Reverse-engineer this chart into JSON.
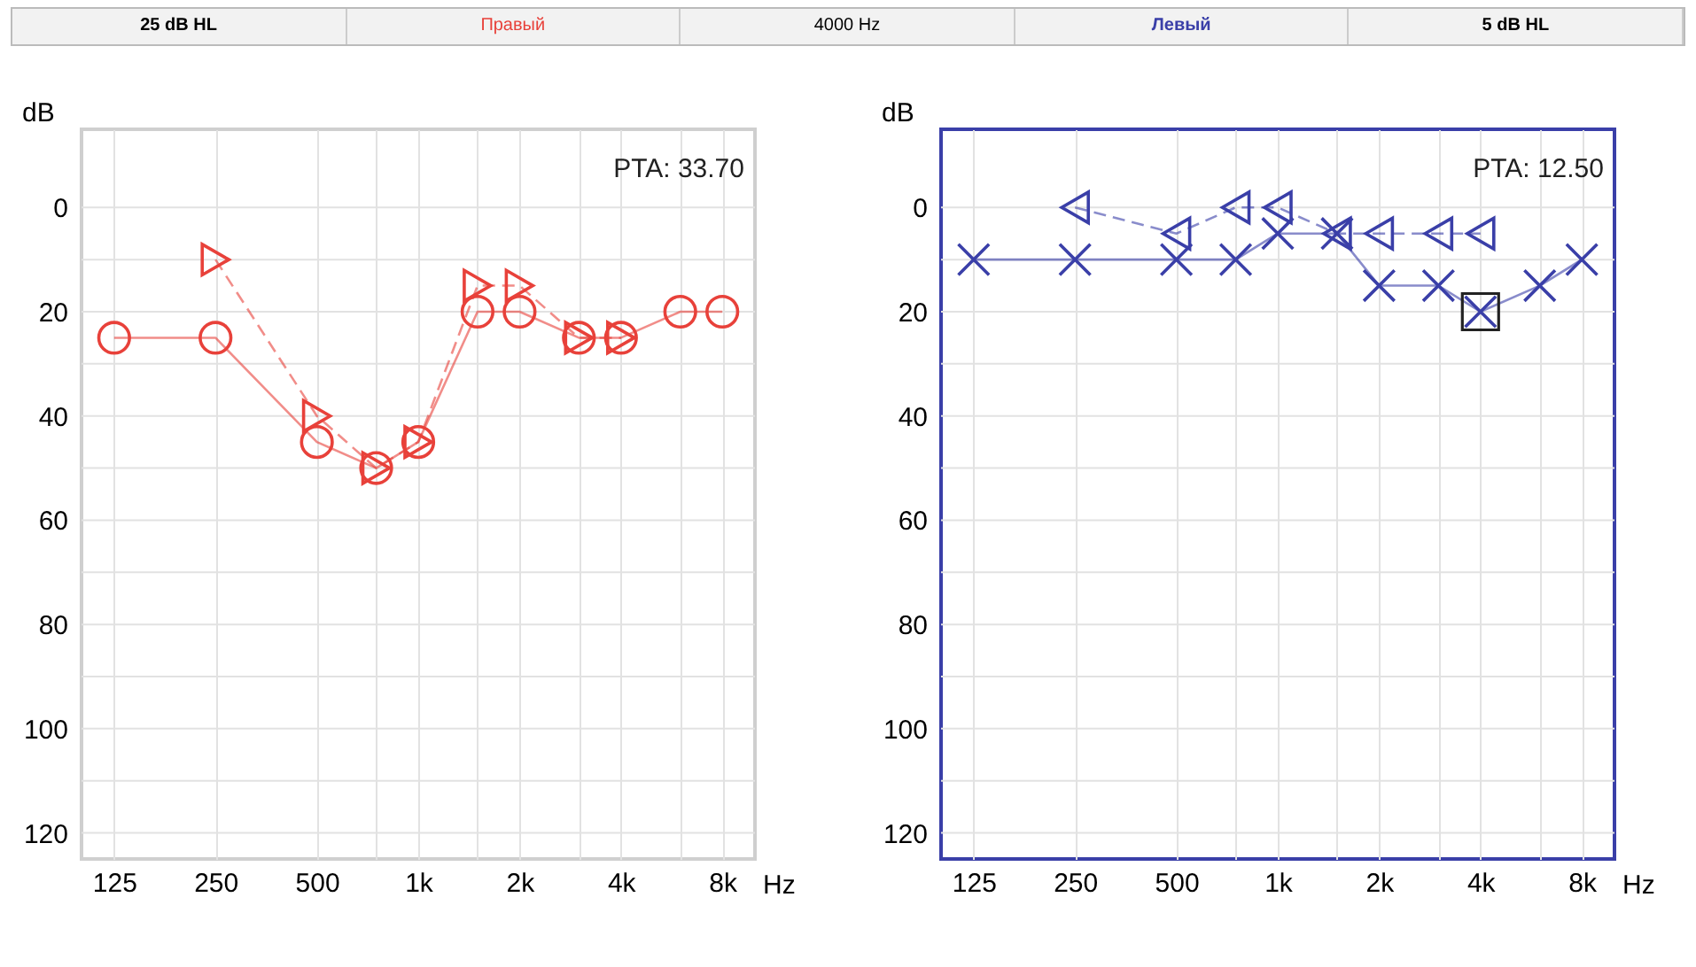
{
  "chart_data": [
    {
      "type": "line",
      "title": "Правый",
      "subtitle": "25 dB HL",
      "ylabel": "dB",
      "xlabel": "Hz",
      "annotations": [
        "4000 Hz",
        "PTA: 33.70"
      ],
      "log": "x",
      "grid": true,
      "xlim": [
        100,
        10000
      ],
      "xticks": [
        125,
        250,
        500,
        {
          "value": 750,
          "label": null
        },
        {
          "value": 1000,
          "label": "1k"
        },
        {
          "value": 1500,
          "label": null
        },
        {
          "value": 2000,
          "label": "2k"
        },
        {
          "value": 3000,
          "label": null
        },
        {
          "value": 4000,
          "label": "4k"
        },
        {
          "value": 6000,
          "label": null
        },
        {
          "value": 8000,
          "label": "8k"
        }
      ],
      "ylim": [
        125,
        -15
      ],
      "yticks": [
        0,
        {
          "value": 10,
          "label": null
        },
        20,
        {
          "value": 30,
          "label": null
        },
        40,
        {
          "value": 50,
          "label": null
        },
        60,
        {
          "value": 70,
          "label": null
        },
        80,
        {
          "value": 90,
          "label": null
        },
        100,
        {
          "value": 110,
          "label": null
        },
        120
      ],
      "series": [
        {
          "color": "#e8413a",
          "marker": "circle",
          "line_style": "solid",
          "x": [
            125,
            250,
            500,
            750,
            1000,
            1500,
            2000,
            3000,
            4000,
            6000,
            8000
          ],
          "values": [
            25,
            25,
            45,
            50,
            45,
            20,
            20,
            25,
            25,
            20,
            20
          ]
        },
        {
          "color": "#e8413a",
          "marker": "triangle",
          "line_style": "dashed",
          "x": [
            250,
            500,
            750,
            1000,
            1500,
            2000,
            3000,
            4000
          ],
          "values": [
            10,
            40,
            50,
            45,
            15,
            15,
            25,
            25
          ]
        }
      ]
    },
    {
      "type": "line",
      "title": "Левый",
      "subtitle": "5 dB HL",
      "ylabel": "dB",
      "xlabel": "Hz",
      "annotations": [
        "PTA: 12.50"
      ],
      "log": "x",
      "grid": true,
      "xlim": [
        100,
        10000
      ],
      "xticks": [
        125,
        250,
        500,
        {
          "value": 750,
          "label": null
        },
        {
          "value": 1000,
          "label": "1k"
        },
        {
          "value": 1500,
          "label": null
        },
        {
          "value": 2000,
          "label": "2k"
        },
        {
          "value": 3000,
          "label": null
        },
        {
          "value": 4000,
          "label": "4k"
        },
        {
          "value": 6000,
          "label": null
        },
        {
          "value": 8000,
          "label": "8k"
        }
      ],
      "ylim": [
        125,
        -15
      ],
      "yticks": [
        0,
        {
          "value": 10,
          "label": null
        },
        20,
        {
          "value": 30,
          "label": null
        },
        40,
        {
          "value": 50,
          "label": null
        },
        60,
        {
          "value": 70,
          "label": null
        },
        80,
        {
          "value": 90,
          "label": null
        },
        100,
        {
          "value": 110,
          "label": null
        },
        120
      ],
      "series": [
        {
          "color": "#3a3fa8",
          "marker": "cross",
          "line_style": "solid",
          "x": [
            125,
            250,
            500,
            750,
            1000,
            1500,
            2000,
            3000,
            4000,
            6000,
            8000
          ],
          "values": [
            10,
            10,
            10,
            10,
            5,
            5,
            15,
            15,
            20,
            15,
            10
          ]
        },
        {
          "color": "#3a3fa8",
          "marker": "triangle",
          "line_style": "dashed",
          "x": [
            250,
            500,
            750,
            1000,
            1500,
            2000,
            3000,
            4000
          ],
          "values": [
            0,
            5,
            0,
            0,
            5,
            5,
            5,
            5
          ]
        },
        {
          "type": "scatter",
          "color": "#222222",
          "marker": "square",
          "x": [
            4000
          ],
          "values": [
            20
          ]
        }
      ]
    }
  ]
}
